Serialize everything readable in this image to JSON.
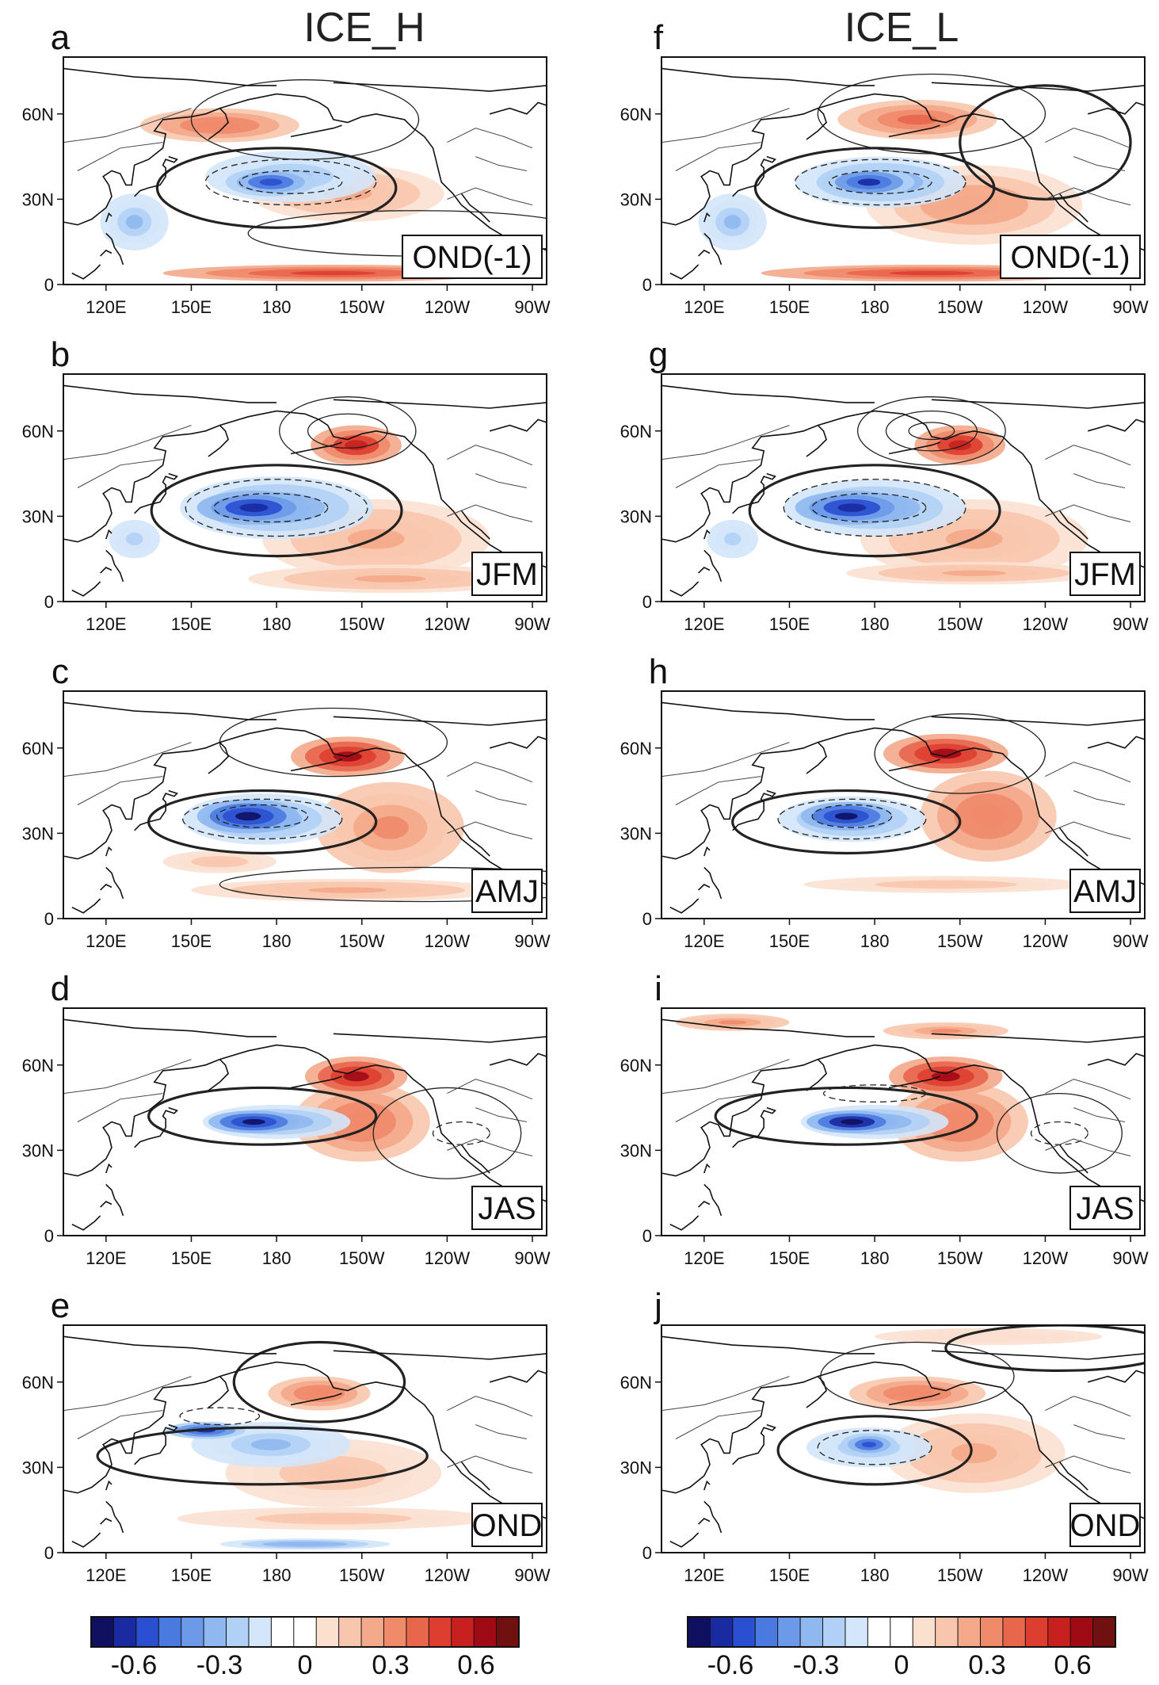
{
  "chart_data": {
    "type": "heatmap",
    "description_units": "SST anomaly composites (colour shading) with contours, North Pacific",
    "columns": [
      {
        "title": "ICE_H"
      },
      {
        "title": "ICE_L"
      }
    ],
    "lon_ticks": [
      "120E",
      "150E",
      "180",
      "150W",
      "120W",
      "90W"
    ],
    "lon_tick_values": [
      120,
      150,
      180,
      210,
      240,
      270
    ],
    "lat_ticks": [
      "0",
      "30N",
      "60N"
    ],
    "lat_tick_values": [
      0,
      30,
      60
    ],
    "lon_range": [
      105,
      275
    ],
    "lat_range": [
      0,
      80
    ],
    "panels": [
      {
        "letter": "a",
        "season": "OND(-1)",
        "column": 0,
        "row": 0
      },
      {
        "letter": "b",
        "season": "JFM",
        "column": 0,
        "row": 1
      },
      {
        "letter": "c",
        "season": "AMJ",
        "column": 0,
        "row": 2
      },
      {
        "letter": "d",
        "season": "JAS",
        "column": 0,
        "row": 3
      },
      {
        "letter": "e",
        "season": "OND",
        "column": 0,
        "row": 4
      },
      {
        "letter": "f",
        "season": "OND(-1)",
        "column": 1,
        "row": 0
      },
      {
        "letter": "g",
        "season": "JFM",
        "column": 1,
        "row": 1
      },
      {
        "letter": "h",
        "season": "AMJ",
        "column": 1,
        "row": 2
      },
      {
        "letter": "i",
        "season": "JAS",
        "column": 1,
        "row": 3
      },
      {
        "letter": "j",
        "season": "OND",
        "column": 1,
        "row": 4
      }
    ],
    "colorbar": {
      "range": [
        -0.75,
        0.75
      ],
      "ticks": [
        "-0.6",
        "-0.3",
        "0",
        "0.3",
        "0.6"
      ],
      "tick_values": [
        -0.6,
        -0.3,
        0,
        0.3,
        0.6
      ],
      "colors": [
        "#101060",
        "#1a2aa0",
        "#2a4fd0",
        "#4a7ae0",
        "#6d9ae8",
        "#8fb8f0",
        "#b0d0f5",
        "#d3e6fa",
        "#ffffff",
        "#ffffff",
        "#fbe0d0",
        "#f8c6ad",
        "#f4a98a",
        "#ef8a6a",
        "#e8664c",
        "#dd3e30",
        "#c8201e",
        "#a00a14",
        "#701010"
      ]
    }
  }
}
